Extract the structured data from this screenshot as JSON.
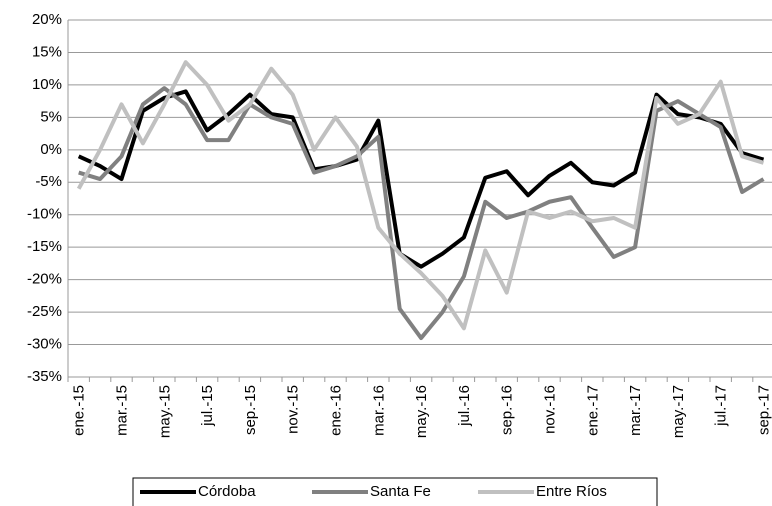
{
  "chart_data": {
    "type": "line",
    "categories": [
      "ene.-15",
      null,
      "mar.-15",
      null,
      "may.-15",
      null,
      "jul.-15",
      null,
      "sep.-15",
      null,
      "nov.-15",
      null,
      "ene.-16",
      null,
      "mar.-16",
      null,
      "may.-16",
      null,
      "jul.-16",
      null,
      "sep.-16",
      null,
      "nov.-16",
      null,
      "ene.-17",
      null,
      "mar.-17",
      null,
      "may.-17",
      null,
      "jul.-17",
      null,
      "sep.-17"
    ],
    "series": [
      {
        "name": "Córdoba",
        "color": "#000000",
        "values": [
          -1,
          -2.5,
          -4.5,
          6,
          8,
          9,
          3,
          5.5,
          8.5,
          5.5,
          5,
          -3,
          -2.5,
          -1.5,
          4.5,
          -16,
          -18,
          -16,
          -13.5,
          -4.3,
          -3.3,
          -7,
          -4,
          -2,
          -5,
          -5.5,
          -3.5,
          8.5,
          5.5,
          5,
          4,
          -0.5,
          -1.5
        ]
      },
      {
        "name": "Santa Fe",
        "color": "#808080",
        "values": [
          -3.5,
          -4.5,
          -1,
          7,
          9.5,
          7,
          1.5,
          1.5,
          7,
          5,
          4,
          -3.5,
          -2.5,
          -1,
          2,
          -24.5,
          -29,
          -25,
          -19.5,
          -8,
          -10.5,
          -9.5,
          -8,
          -7.3,
          -12,
          -16.5,
          -15,
          6,
          7.5,
          5.5,
          3.5,
          -6.5,
          -4.5
        ]
      },
      {
        "name": "Entre Ríos",
        "color": "#c0c0c0",
        "values": [
          -6,
          0,
          7,
          1,
          7,
          13.5,
          10,
          4.5,
          7,
          12.5,
          8.5,
          0,
          5,
          0.5,
          -12,
          -16,
          -19,
          -22.5,
          -27.5,
          -15.5,
          -22,
          -9.5,
          -10.5,
          -9.5,
          -11,
          -10.5,
          -12,
          8,
          4,
          5.5,
          10.5,
          -1,
          -2
        ]
      }
    ],
    "ylim": [
      -35,
      20
    ],
    "yticks": [
      {
        "value": -35,
        "label": "-35%"
      },
      {
        "value": -30,
        "label": "-30%"
      },
      {
        "value": -25,
        "label": "-25%"
      },
      {
        "value": -20,
        "label": "-20%"
      },
      {
        "value": -15,
        "label": "-15%"
      },
      {
        "value": -10,
        "label": "-10%"
      },
      {
        "value": -5,
        "label": "-5%"
      },
      {
        "value": 0,
        "label": "0%"
      },
      {
        "value": 5,
        "label": "5%"
      },
      {
        "value": 10,
        "label": "10%"
      },
      {
        "value": 15,
        "label": "15%"
      },
      {
        "value": 20,
        "label": "20%"
      }
    ],
    "grid": true,
    "legend": "bottom"
  }
}
